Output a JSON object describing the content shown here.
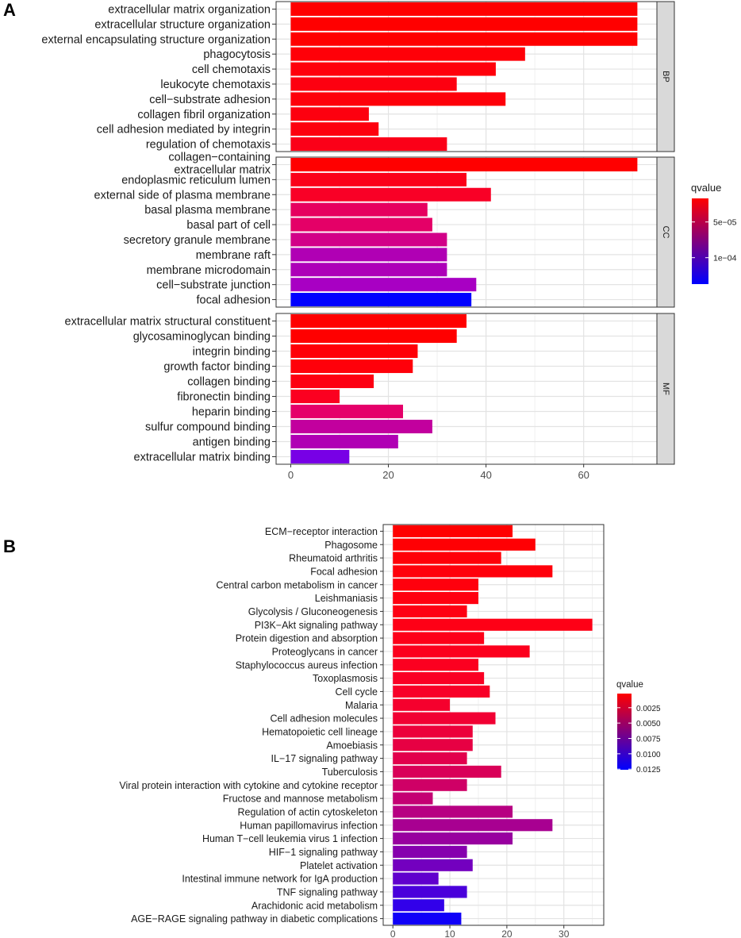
{
  "panel_labels": {
    "a": "A",
    "b": "B"
  },
  "chart_data": [
    {
      "id": "A",
      "type": "bar",
      "orientation": "horizontal",
      "xlim": [
        -3,
        75
      ],
      "x_ticks": [
        0,
        20,
        40,
        60
      ],
      "grid": true,
      "legend": {
        "title": "qvalue",
        "placement": "right",
        "ticks": [
          {
            "value": 5e-05,
            "label": "5e−05"
          },
          {
            "value": 0.0001,
            "label": "1e−04"
          }
        ],
        "range": [
          1.7e-05,
          0.000137
        ],
        "colors": {
          "low": "#ff0000",
          "high": "#0000ff"
        }
      },
      "facets": [
        {
          "name": "BP",
          "categories": [
            "extracellular matrix organization",
            "extracellular structure organization",
            "external encapsulating structure organization",
            "phagocytosis",
            "cell chemotaxis",
            "leukocyte chemotaxis",
            "cell−substrate adhesion",
            "collagen fibril organization",
            "cell adhesion mediated by integrin",
            "regulation of chemotaxis"
          ],
          "values": [
            71,
            71,
            71,
            48,
            42,
            34,
            44,
            16,
            18,
            32
          ],
          "colors": [
            "#ff0000",
            "#ff0000",
            "#ff0000",
            "#ff0008",
            "#ff000b",
            "#fd0010",
            "#fe000a",
            "#fd000f",
            "#fd000e",
            "#fb0018"
          ]
        },
        {
          "name": "CC",
          "categories": [
            "collagen−containing\nextracellular matrix",
            "endoplasmic reticulum lumen",
            "external side of plasma membrane",
            "basal plasma membrane",
            "basal part of cell",
            "secretory granule membrane",
            "membrane raft",
            "membrane microdomain",
            "cell−substrate junction",
            "focal adhesion"
          ],
          "values": [
            71,
            36,
            41,
            28,
            29,
            32,
            32,
            32,
            38,
            37
          ],
          "colors": [
            "#ff0000",
            "#fb0019",
            "#f90026",
            "#e6005f",
            "#e40067",
            "#d20088",
            "#b000b4",
            "#ad00b8",
            "#a800c3",
            "#0000ff"
          ]
        },
        {
          "name": "MF",
          "categories": [
            "extracellular matrix structural constituent",
            "glycosaminoglycan binding",
            "integrin binding",
            "growth factor binding",
            "collagen binding",
            "fibronectin binding",
            "heparin binding",
            "sulfur compound binding",
            "antigen binding",
            "extracellular matrix binding"
          ],
          "values": [
            36,
            34,
            26,
            25,
            17,
            10,
            23,
            29,
            22,
            12
          ],
          "colors": [
            "#ff0000",
            "#ff0000",
            "#ff0008",
            "#ff000a",
            "#fd0012",
            "#fb0020",
            "#e5006a",
            "#c2009e",
            "#b000b4",
            "#7800e6"
          ]
        }
      ]
    },
    {
      "id": "B",
      "type": "bar",
      "orientation": "horizontal",
      "xlim": [
        -1.7,
        37
      ],
      "x_ticks": [
        0,
        10,
        20,
        30
      ],
      "grid": true,
      "legend": {
        "title": "qvalue",
        "placement": "right",
        "ticks": [
          {
            "value": 0.0025,
            "label": "0.0025"
          },
          {
            "value": 0.005,
            "label": "0.0050"
          },
          {
            "value": 0.0075,
            "label": "0.0075"
          },
          {
            "value": 0.01,
            "label": "0.0100"
          },
          {
            "value": 0.0125,
            "label": "0.0125"
          }
        ],
        "range": [
          0.0002,
          0.0126
        ],
        "colors": {
          "low": "#ff0000",
          "high": "#0000ff"
        }
      },
      "categories": [
        "ECM−receptor interaction",
        "Phagosome",
        "Rheumatoid arthritis",
        "Focal adhesion",
        "Central carbon metabolism in cancer",
        "Leishmaniasis",
        "Glycolysis / Gluconeogenesis",
        "PI3K−Akt signaling pathway",
        "Protein digestion and absorption",
        "Proteoglycans in cancer",
        "Staphylococcus aureus infection",
        "Toxoplasmosis",
        "Cell cycle",
        "Malaria",
        "Cell adhesion molecules",
        "Hematopoietic cell lineage",
        "Amoebiasis",
        "IL−17 signaling pathway",
        "Tuberculosis",
        "Viral protein interaction with cytokine and cytokine receptor",
        "Fructose and mannose metabolism",
        "Regulation of actin cytoskeleton",
        "Human papillomavirus infection",
        "Human T−cell leukemia virus 1 infection",
        "HIF−1 signaling pathway",
        "Platelet activation",
        "Intestinal immune network for IgA production",
        "TNF signaling pathway",
        "Arachidonic acid metabolism",
        "AGE−RAGE signaling pathway in diabetic complications"
      ],
      "values": [
        21,
        25,
        19,
        28,
        15,
        15,
        13,
        35,
        16,
        24,
        15,
        16,
        17,
        10,
        18,
        14,
        14,
        13,
        19,
        13,
        7,
        21,
        28,
        21,
        13,
        14,
        8,
        13,
        9,
        12
      ],
      "colors": [
        "#ff0000",
        "#ff0004",
        "#ff0008",
        "#ff000b",
        "#ff000d",
        "#ff0010",
        "#fe0013",
        "#fe0016",
        "#fd0019",
        "#fc001d",
        "#fb0020",
        "#fa0024",
        "#f80028",
        "#f5002d",
        "#f10033",
        "#ec003b",
        "#e70043",
        "#e2004c",
        "#d90058",
        "#cf0066",
        "#c40073",
        "#b70082",
        "#a80091",
        "#98009f",
        "#8600ae",
        "#7300bf",
        "#6000cd",
        "#4a00db",
        "#3200ea",
        "#1000f8"
      ]
    }
  ]
}
